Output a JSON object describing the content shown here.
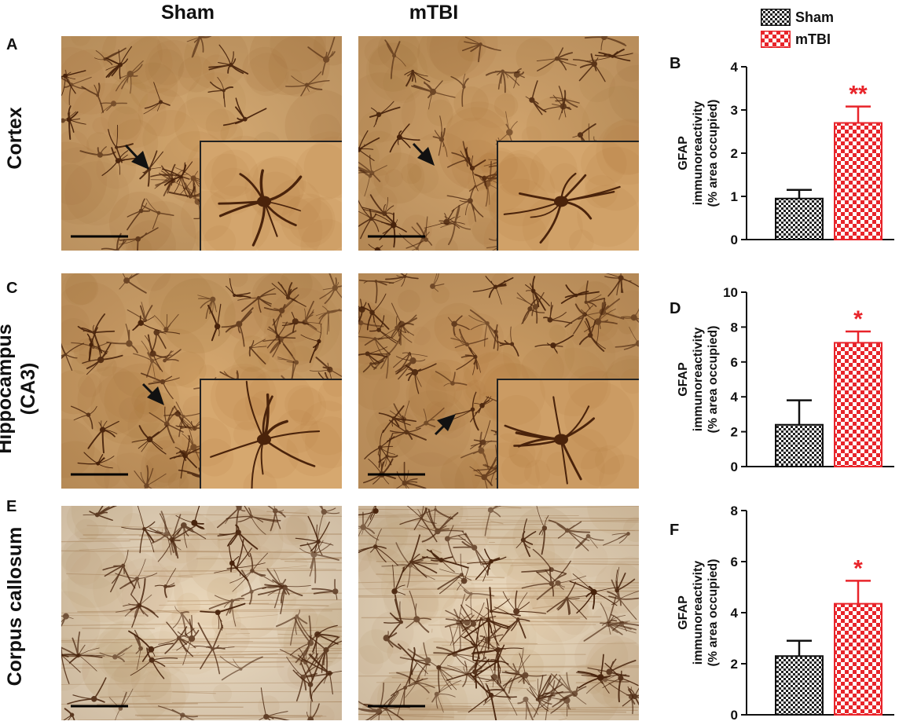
{
  "columns": {
    "left": "Sham",
    "right": "mTBI"
  },
  "panel_letters": {
    "A": "A",
    "B": "B",
    "C": "C",
    "D": "D",
    "E": "E",
    "F": "F"
  },
  "rows": {
    "cortex": "Cortex",
    "hippocampus_line1": "Hippocampus",
    "hippocampus_line2": "(CA3)",
    "corpus": "Corpus callosum"
  },
  "legend": {
    "sham": "Sham",
    "mtbi": "mTBI"
  },
  "colors": {
    "sham": "#333333",
    "mtbi": "#e8242a",
    "stain_dark": "#5a2f12",
    "stain_bg": "#d9ad74",
    "cc_bg": "#efdcc0"
  },
  "icons": [
    "arrow-icon"
  ],
  "chart_data": [
    {
      "panel": "B",
      "type": "bar",
      "categories": [
        "Sham",
        "mTBI"
      ],
      "values": [
        0.95,
        2.7
      ],
      "errors": [
        0.2,
        0.38
      ],
      "ylim": [
        0,
        4
      ],
      "yticks": [
        "0",
        "1",
        "2",
        "3",
        "4"
      ],
      "ylabel_lines": [
        "GFAP",
        "immunoreactivity",
        "(% area occupied)"
      ],
      "significance": "**"
    },
    {
      "panel": "D",
      "type": "bar",
      "categories": [
        "Sham",
        "mTBI"
      ],
      "values": [
        2.4,
        7.1
      ],
      "errors": [
        1.4,
        0.65
      ],
      "ylim": [
        0,
        10
      ],
      "yticks": [
        "0",
        "2",
        "4",
        "6",
        "8",
        "10"
      ],
      "ylabel_lines": [
        "GFAP",
        "immunoreactivity",
        "(% area occupied)"
      ],
      "significance": "*"
    },
    {
      "panel": "F",
      "type": "bar",
      "categories": [
        "Sham",
        "mTBI"
      ],
      "values": [
        2.3,
        4.35
      ],
      "errors": [
        0.6,
        0.9
      ],
      "ylim": [
        0,
        8
      ],
      "yticks": [
        "0",
        "2",
        "4",
        "6",
        "8"
      ],
      "ylabel_lines": [
        "GFAP",
        "immunoreactivity",
        "(% area occupied)"
      ],
      "significance": "*"
    }
  ]
}
